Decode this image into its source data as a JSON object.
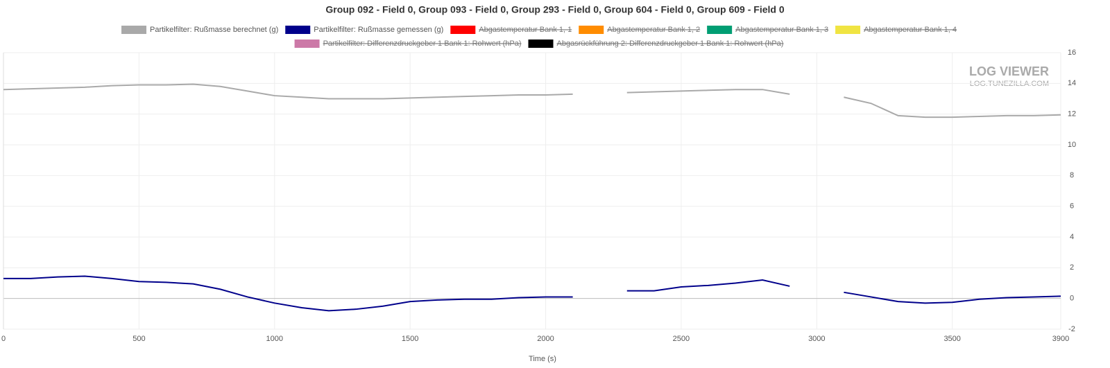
{
  "chart_data": {
    "type": "line",
    "title": "Group 092 - Field 0, Group 093 - Field 0, Group 293 - Field 0, Group 604 - Field 0, Group 609 - Field 0",
    "xlabel": "Time (s)",
    "watermark": {
      "title": "LOG VIEWER",
      "subtitle": "LOG.TUNEZILLA.COM"
    },
    "x": [
      0,
      100,
      200,
      300,
      400,
      500,
      600,
      700,
      800,
      900,
      1000,
      1100,
      1200,
      1300,
      1400,
      1500,
      1600,
      1700,
      1800,
      1900,
      2000,
      2100,
      2200,
      2300,
      2400,
      2500,
      2600,
      2700,
      2800,
      2900,
      3000,
      3100,
      3200,
      3300,
      3400,
      3500,
      3600,
      3700,
      3800,
      3900
    ],
    "series": [
      {
        "name": "Partikelfilter: Rußmasse berechnet (g)",
        "color": "#a9a9a9",
        "values": [
          13.6,
          13.65,
          13.7,
          13.75,
          13.85,
          13.9,
          13.9,
          13.95,
          13.8,
          13.5,
          13.2,
          13.1,
          13.0,
          13.0,
          13.0,
          13.05,
          13.1,
          13.15,
          13.2,
          13.25,
          13.25,
          13.3,
          null,
          13.4,
          13.45,
          13.5,
          13.55,
          13.6,
          13.6,
          13.3,
          null,
          13.1,
          12.7,
          11.9,
          11.8,
          11.8,
          11.85,
          11.9,
          11.9,
          11.95
        ]
      },
      {
        "name": "Partikelfilter: Rußmasse gemessen (g)",
        "color": "#00008b",
        "values": [
          1.3,
          1.3,
          1.4,
          1.45,
          1.3,
          1.1,
          1.05,
          0.95,
          0.6,
          0.1,
          -0.3,
          -0.6,
          -0.8,
          -0.7,
          -0.5,
          -0.2,
          -0.1,
          -0.05,
          -0.05,
          0.05,
          0.1,
          0.1,
          null,
          0.5,
          0.5,
          0.75,
          0.85,
          1.0,
          1.2,
          0.8,
          null,
          0.4,
          0.1,
          -0.2,
          -0.3,
          -0.25,
          -0.05,
          0.05,
          0.1,
          0.15
        ]
      },
      {
        "name": "Abgastemperatur Bank 1, 1",
        "color": "#ff0000",
        "hidden": true
      },
      {
        "name": "Abgastemperatur Bank 1, 2",
        "color": "#ff8c00",
        "hidden": true
      },
      {
        "name": "Abgastemperatur Bank 1, 3",
        "color": "#009e73",
        "hidden": true
      },
      {
        "name": "Abgastemperatur Bank 1, 4",
        "color": "#f0e442",
        "hidden": true
      },
      {
        "name": "Partikelfilter: Differenzdruckgeber 1 Bank 1: Rohwert (hPa)",
        "color": "#cc79a7",
        "hidden": true
      },
      {
        "name": "Abgasrückführung 2: Differenzdruckgeber 1 Bank 1: Rohwert (hPa)",
        "color": "#000000",
        "hidden": true
      }
    ],
    "xlim": [
      0,
      3900
    ],
    "xticks": [
      0,
      500,
      1000,
      1500,
      2000,
      2500,
      3000,
      3500,
      3900
    ],
    "ylim": [
      -2,
      16
    ],
    "yticks": [
      -2,
      0,
      2,
      4,
      6,
      8,
      10,
      12,
      14,
      16
    ],
    "grid": true,
    "legend": "top"
  }
}
